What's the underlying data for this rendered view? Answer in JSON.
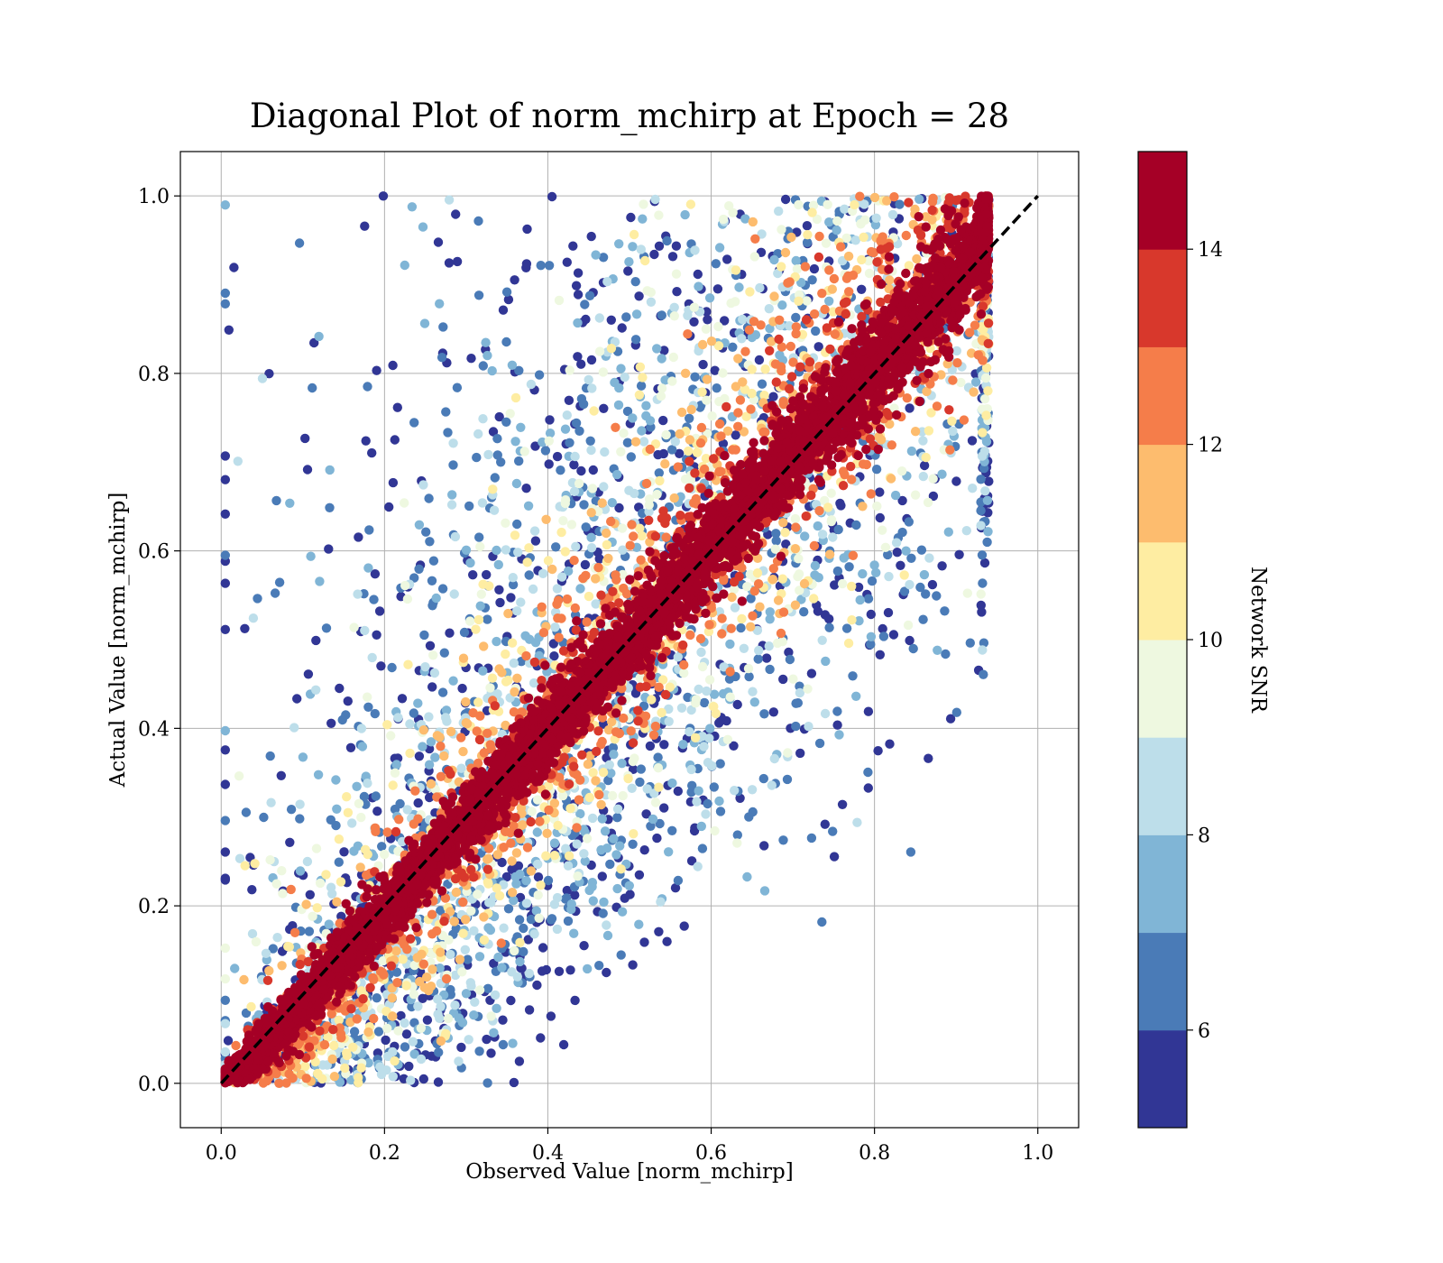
{
  "chart_data": {
    "type": "scatter",
    "title": "Diagonal Plot of norm_mchirp at Epoch = 28",
    "xlabel": "Observed Value [norm_mchirp]",
    "ylabel": "Actual Value [norm_mchirp]",
    "xlim": [
      -0.05,
      1.05
    ],
    "ylim": [
      -0.05,
      1.05
    ],
    "xticks": [
      0.0,
      0.2,
      0.4,
      0.6,
      0.8,
      1.0
    ],
    "yticks": [
      0.0,
      0.2,
      0.4,
      0.6,
      0.8,
      1.0
    ],
    "xtick_labels": [
      "0.0",
      "0.2",
      "0.4",
      "0.6",
      "0.8",
      "1.0"
    ],
    "ytick_labels": [
      "0.0",
      "0.2",
      "0.4",
      "0.6",
      "0.8",
      "1.0"
    ],
    "grid": true,
    "reference_line": {
      "style": "dashed",
      "color": "#000000",
      "from": [
        0.0,
        0.0
      ],
      "to": [
        1.0,
        1.0
      ]
    },
    "color_variable": "Network SNR",
    "colorbar": {
      "label": "Network SNR",
      "range": [
        5,
        15
      ],
      "ticks": [
        6,
        8,
        10,
        12,
        14
      ],
      "tick_labels": [
        "6",
        "8",
        "10",
        "12",
        "14"
      ],
      "bins": [
        {
          "from": 5,
          "to": 6,
          "color": "#313695"
        },
        {
          "from": 6,
          "to": 7,
          "color": "#4a7bb7"
        },
        {
          "from": 7,
          "to": 8,
          "color": "#80b5d6"
        },
        {
          "from": 8,
          "to": 9,
          "color": "#bddeea"
        },
        {
          "from": 9,
          "to": 10,
          "color": "#eef8e0"
        },
        {
          "from": 10,
          "to": 11,
          "color": "#feeda2"
        },
        {
          "from": 11,
          "to": 12,
          "color": "#fdbc6e"
        },
        {
          "from": 12,
          "to": 13,
          "color": "#f57d4a"
        },
        {
          "from": 13,
          "to": 14,
          "color": "#d8382c"
        },
        {
          "from": 14,
          "to": 15,
          "color": "#a50026"
        }
      ]
    },
    "observed_range": [
      0.0,
      0.94
    ],
    "actual_range": [
      0.0,
      1.0
    ]
  }
}
